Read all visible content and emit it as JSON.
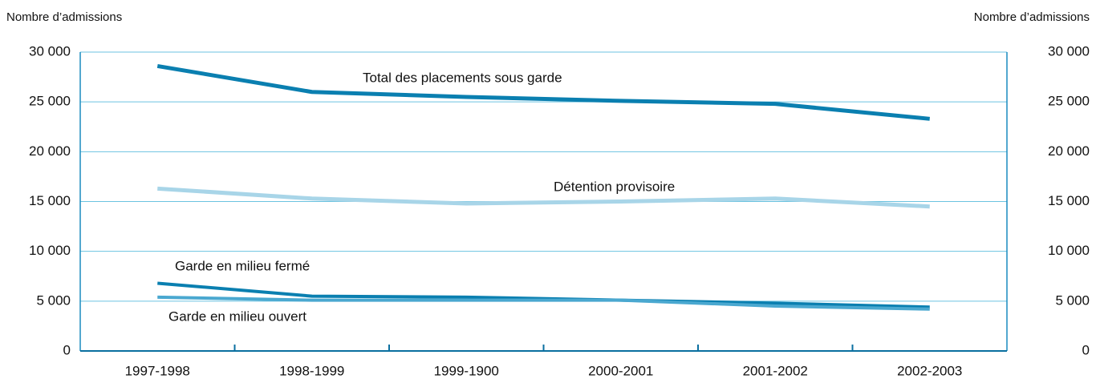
{
  "chart_data": {
    "type": "line",
    "ylabel": "Nombre d’admissions",
    "y2label": "Nombre d’admissions",
    "categories": [
      "1997-1998",
      "1998-1999",
      "1999-1900",
      "2000-2001",
      "2001-2002",
      "2002-2003"
    ],
    "series": [
      {
        "name": "Total des placements sous garde",
        "color": "#0a7fb0",
        "values": [
          28600,
          26000,
          25500,
          25100,
          24800,
          23300
        ]
      },
      {
        "name": "Détention provisoire",
        "color": "#a8d5e8",
        "values": [
          16300,
          15300,
          14800,
          15000,
          15300,
          14500
        ]
      },
      {
        "name": "Garde en milieu fermé",
        "color": "#0a7fb0",
        "values": [
          6800,
          5500,
          5400,
          5100,
          4800,
          4400
        ]
      },
      {
        "name": "Garde en milieu ouvert",
        "color": "#4aa8d0",
        "values": [
          5400,
          5100,
          5100,
          5100,
          4500,
          4200
        ]
      }
    ],
    "ylim": [
      0,
      30000
    ],
    "yticks": [
      0,
      {
        "value": 5000,
        "label": "5 000"
      },
      {
        "value": 10000,
        "label": "10 000"
      },
      {
        "value": 15000,
        "label": "15 000"
      },
      {
        "value": 20000,
        "label": "20 000"
      },
      {
        "value": 25000,
        "label": "25 000"
      },
      {
        "value": 30000,
        "label": "30 000"
      }
    ],
    "y2lim": [
      0,
      30000
    ],
    "y2ticks": [
      0,
      {
        "value": 5000,
        "label": "5 000"
      },
      {
        "value": 10000,
        "label": "10 000"
      },
      {
        "value": 15000,
        "label": "15 000"
      },
      {
        "value": 20000,
        "label": "20 000"
      },
      {
        "value": 25000,
        "label": "25 000"
      },
      {
        "value": 30000,
        "label": "30 000"
      }
    ],
    "grid": true
  }
}
